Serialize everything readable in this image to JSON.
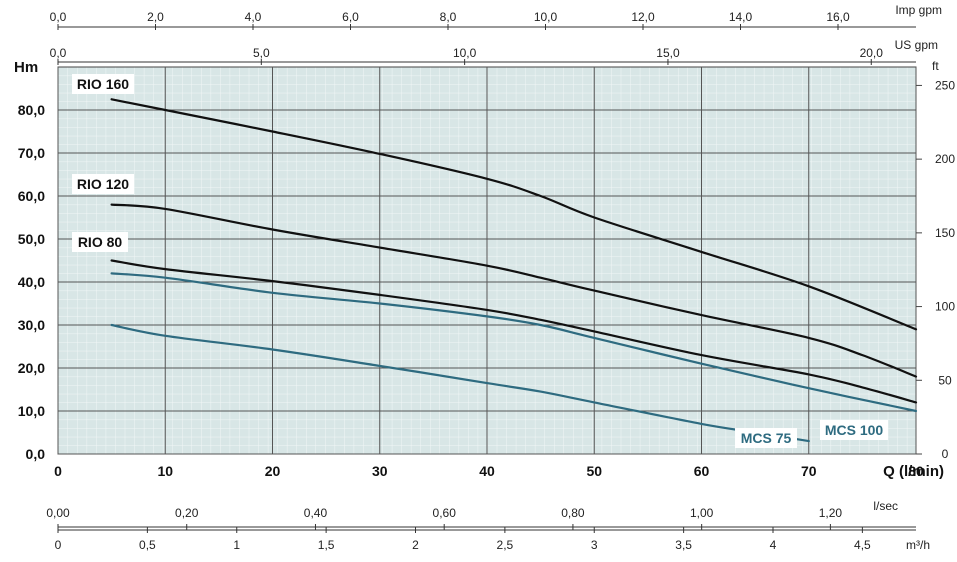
{
  "chart_data": {
    "type": "line",
    "x": {
      "label": "Q (l/min)",
      "range": [
        0,
        80
      ],
      "ticks": [
        "0",
        "10",
        "20",
        "30",
        "40",
        "50",
        "60",
        "70",
        "80"
      ]
    },
    "y_left": {
      "label": "Hm",
      "range": [
        0,
        90
      ],
      "ticks": [
        "0,0",
        "10,0",
        "20,0",
        "30,0",
        "40,0",
        "50,0",
        "60,0",
        "70,0",
        "80,0"
      ]
    },
    "y_right": {
      "label": "ft",
      "range": [
        0,
        262.5
      ],
      "ticks": [
        "0",
        "50",
        "100",
        "150",
        "200",
        "250"
      ]
    },
    "top_axes": [
      {
        "label": "Imp gpm",
        "range": [
          0,
          17.6
        ],
        "ticks": [
          "0,0",
          "2,0",
          "4,0",
          "6,0",
          "8,0",
          "10,0",
          "12,0",
          "14,0",
          "16,0"
        ]
      },
      {
        "label": "US gpm",
        "range": [
          0,
          21.1
        ],
        "ticks": [
          "0,0",
          "5,0",
          "10,0",
          "15,0",
          "20,0"
        ]
      }
    ],
    "bottom_axes": [
      {
        "label": "l/sec",
        "range": [
          0,
          1.333
        ],
        "ticks": [
          "0,00",
          "0,20",
          "0,40",
          "0,60",
          "0,80",
          "1,00",
          "1,20"
        ]
      },
      {
        "label": "m³/h",
        "range": [
          0,
          4.8
        ],
        "ticks": [
          "0",
          "0,5",
          "1",
          "1,5",
          "2",
          "2,5",
          "3",
          "3,5",
          "4",
          "4,5"
        ]
      }
    ],
    "grid": true,
    "series": [
      {
        "name": "RIO 160",
        "color": "#111111",
        "x": [
          5,
          10,
          20,
          30,
          40,
          45,
          50,
          60,
          70,
          80
        ],
        "y": [
          82.5,
          80,
          75,
          69.8,
          64,
          60,
          55,
          47,
          39,
          29
        ]
      },
      {
        "name": "RIO 120",
        "color": "#111111",
        "x": [
          5,
          10,
          20,
          30,
          40,
          45,
          50,
          60,
          70,
          75,
          80
        ],
        "y": [
          58,
          57,
          52.2,
          48,
          43.8,
          41,
          38,
          32.3,
          27,
          23,
          18
        ]
      },
      {
        "name": "RIO 80",
        "color": "#111111",
        "x": [
          5,
          10,
          20,
          30,
          40,
          45,
          50,
          60,
          70,
          75,
          80
        ],
        "y": [
          45,
          43,
          40.2,
          37,
          33.5,
          31.2,
          28.5,
          23,
          18.5,
          15.5,
          12
        ]
      },
      {
        "name": "MCS 100",
        "color": "#2e6b80",
        "x": [
          5,
          10,
          20,
          30,
          40,
          45,
          50,
          60,
          70,
          80
        ],
        "y": [
          42,
          41,
          37.5,
          35,
          32,
          30,
          27,
          21,
          15.3,
          10
        ]
      },
      {
        "name": "MCS 75",
        "color": "#2e6b80",
        "x": [
          5,
          10,
          20,
          30,
          40,
          45,
          50,
          60,
          65,
          70
        ],
        "y": [
          30,
          27.5,
          24.3,
          20.5,
          16.5,
          14.5,
          12,
          7,
          5,
          3
        ]
      }
    ]
  }
}
